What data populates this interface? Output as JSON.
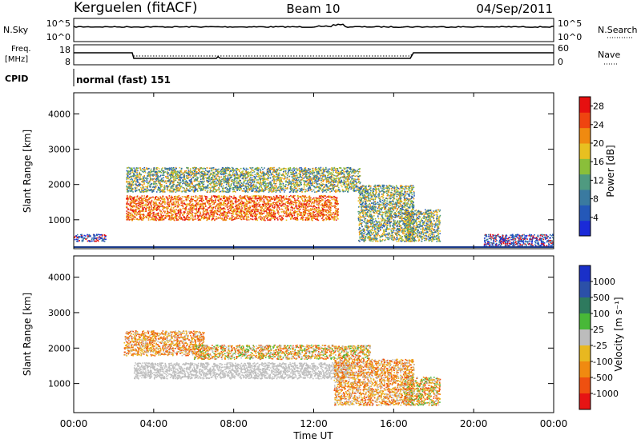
{
  "header": {
    "station": "Kerguelen (fitACF)",
    "beam": "Beam 10",
    "date": "04/Sep/2011"
  },
  "noise_panel": {
    "left_label": "N.Sky",
    "left_ticks": [
      "10^5",
      "10^0"
    ],
    "right_label": "N.Search",
    "right_ticks": [
      "10^5",
      "10^0"
    ]
  },
  "freq_panel": {
    "left_label_1": "Freq.",
    "left_label_2": "[MHz]",
    "left_ticks": [
      "18",
      "8"
    ],
    "right_label": "Nave",
    "right_ticks": [
      "60",
      "0"
    ]
  },
  "cpid": {
    "label": "CPID",
    "value": "normal (fast) 151"
  },
  "chart_data": [
    {
      "type": "heatmap",
      "name": "power",
      "x_ticks": [
        "00:00",
        "04:00",
        "08:00",
        "12:00",
        "16:00",
        "20:00",
        "00:00"
      ],
      "xlim": [
        0,
        24
      ],
      "ylabel": "Slant Range [km]",
      "y_ticks": [
        1000,
        2000,
        3000,
        4000
      ],
      "ylim": [
        180,
        4600
      ],
      "colorbar": {
        "label": "Power [dB]",
        "ticks": [
          "4",
          "8",
          "12",
          "16",
          "20",
          "24",
          "28"
        ],
        "range": [
          0,
          30
        ]
      },
      "regions": [
        {
          "x": [
            2.6,
            13.2
          ],
          "y": [
            1000,
            1700
          ],
          "level": "high"
        },
        {
          "x": [
            2.6,
            14.3
          ],
          "y": [
            1800,
            2500
          ],
          "level": "medium"
        },
        {
          "x": [
            14.2,
            17.0
          ],
          "y": [
            400,
            2000
          ],
          "level": "medium"
        },
        {
          "x": [
            16.5,
            18.3
          ],
          "y": [
            400,
            1300
          ],
          "level": "medium"
        },
        {
          "x": [
            20.5,
            24.0
          ],
          "y": [
            250,
            600
          ],
          "level": "low"
        },
        {
          "x": [
            0.0,
            1.6
          ],
          "y": [
            400,
            600
          ],
          "level": "low"
        }
      ]
    },
    {
      "type": "heatmap",
      "name": "velocity",
      "x_ticks": [
        "00:00",
        "04:00",
        "08:00",
        "12:00",
        "16:00",
        "20:00",
        "00:00"
      ],
      "xlabel": "Time UT",
      "xlim": [
        0,
        24
      ],
      "ylabel": "Slant Range [km]",
      "y_ticks": [
        1000,
        2000,
        3000,
        4000
      ],
      "ylim": [
        180,
        4600
      ],
      "colorbar": {
        "label": "Velocity [m s⁻¹]",
        "ticks": [
          "1000",
          "500",
          "100",
          "25",
          "-25",
          "-100",
          "-500",
          "-1000"
        ]
      },
      "regions": [
        {
          "x": [
            3.0,
            13.8
          ],
          "y": [
            1150,
            1600
          ],
          "level": "near-zero"
        },
        {
          "x": [
            2.5,
            6.5
          ],
          "y": [
            1800,
            2500
          ],
          "level": "negative"
        },
        {
          "x": [
            6.0,
            14.8
          ],
          "y": [
            1700,
            2100
          ],
          "level": "mixed"
        },
        {
          "x": [
            13.0,
            17.0
          ],
          "y": [
            400,
            1700
          ],
          "level": "negative"
        },
        {
          "x": [
            16.5,
            18.3
          ],
          "y": [
            400,
            1200
          ],
          "level": "mixed"
        }
      ]
    }
  ]
}
